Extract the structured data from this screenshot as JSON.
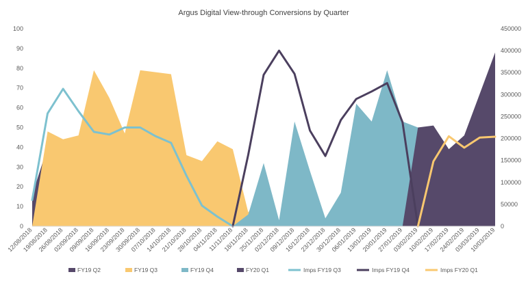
{
  "chart_data": {
    "type": "area",
    "title": "Argus Digital  View-through Conversions by Quarter",
    "xlabel": "",
    "ylabel": "",
    "categories": [
      "12/08/2018",
      "19/08/2018",
      "26/08/2018",
      "02/09/2018",
      "09/09/2018",
      "16/09/2018",
      "23/09/2018",
      "30/09/2018",
      "07/10/2018",
      "14/10/2018",
      "21/10/2018",
      "28/10/2018",
      "04/11/2018",
      "11/11/2018",
      "18/11/2018",
      "25/11/2018",
      "02/12/2018",
      "09/12/2018",
      "16/12/2018",
      "23/12/2018",
      "30/12/2018",
      "06/01/2019",
      "13/01/2019",
      "20/01/2019",
      "27/01/2019",
      "03/02/2019",
      "10/02/2019",
      "17/02/2019",
      "24/02/2019",
      "03/03/2019",
      "10/03/2019"
    ],
    "ylim": [
      0,
      100
    ],
    "y2lim": [
      0,
      450000
    ],
    "yticks": [
      0,
      10,
      20,
      30,
      40,
      50,
      60,
      70,
      80,
      90,
      100
    ],
    "y2ticks": [
      0,
      50000,
      100000,
      150000,
      200000,
      250000,
      300000,
      350000,
      400000,
      450000
    ],
    "grid": false,
    "legend_position": "bottom",
    "colors": {
      "fy19q2": "#56496a",
      "fy19q3": "#f9c870",
      "fy19q4": "#7eb8c7",
      "fy20q1": "#56496a",
      "imps_fy19q3": "#7dc1cf",
      "imps_fy19q4": "#4b3f5e",
      "imps_fy20q1": "#f9c870"
    },
    "series": [
      {
        "name": "FY19 Q2",
        "kind": "area",
        "axis": "left",
        "values": [
          16,
          40,
          24,
          25,
          44,
          25,
          null,
          13,
          14,
          16,
          19,
          1,
          0,
          0,
          0,
          0,
          0,
          0,
          0,
          0,
          0,
          0,
          0,
          0,
          0,
          0,
          0,
          0,
          0,
          0,
          0
        ]
      },
      {
        "name": "FY19 Q3",
        "kind": "area",
        "axis": "left",
        "values": [
          0,
          48,
          44,
          46,
          79,
          65,
          47,
          79,
          78,
          77,
          36,
          33,
          43,
          39,
          7,
          19,
          2,
          20,
          12,
          1,
          5,
          14,
          3,
          2,
          0,
          0,
          0,
          0,
          0,
          0,
          0
        ]
      },
      {
        "name": "FY19 Q4",
        "kind": "area",
        "axis": "left",
        "values": [
          0,
          0,
          0,
          0,
          0,
          0,
          0,
          0,
          0,
          0,
          0,
          0,
          0,
          0,
          6,
          32,
          3,
          53,
          28,
          4,
          17,
          62,
          53,
          79,
          53,
          50,
          49,
          21,
          11,
          22,
          34
        ]
      },
      {
        "name": "FY20 Q1",
        "kind": "area",
        "axis": "left",
        "values": [
          0,
          0,
          0,
          0,
          0,
          0,
          0,
          0,
          0,
          0,
          0,
          0,
          0,
          0,
          0,
          0,
          0,
          0,
          0,
          0,
          0,
          0,
          0,
          0,
          0,
          50,
          51,
          39,
          46,
          67,
          88
        ]
      },
      {
        "name": "Imps FY19 Q3",
        "kind": "line",
        "axis": "right",
        "values": [
          60000,
          257000,
          313000,
          262000,
          215000,
          209000,
          225000,
          225000,
          205000,
          190000,
          115000,
          47000,
          22000,
          0,
          null,
          null,
          null,
          null,
          null,
          null,
          null,
          null,
          null,
          null,
          null,
          null,
          null,
          null,
          null,
          null,
          null
        ]
      },
      {
        "name": "Imps FY19 Q4",
        "kind": "line",
        "axis": "right",
        "values": [
          null,
          null,
          null,
          null,
          null,
          null,
          null,
          null,
          null,
          null,
          null,
          null,
          null,
          0,
          163000,
          345000,
          400000,
          347000,
          218000,
          160000,
          242000,
          290000,
          307000,
          326000,
          237000,
          0,
          null,
          null,
          null,
          null,
          null
        ]
      },
      {
        "name": "Imps FY20 Q1",
        "kind": "line",
        "axis": "right",
        "values": [
          null,
          null,
          null,
          null,
          null,
          null,
          null,
          null,
          null,
          null,
          null,
          null,
          null,
          null,
          null,
          null,
          null,
          null,
          null,
          null,
          null,
          null,
          null,
          null,
          null,
          0,
          148000,
          205000,
          179000,
          202000,
          204000
        ]
      }
    ]
  }
}
